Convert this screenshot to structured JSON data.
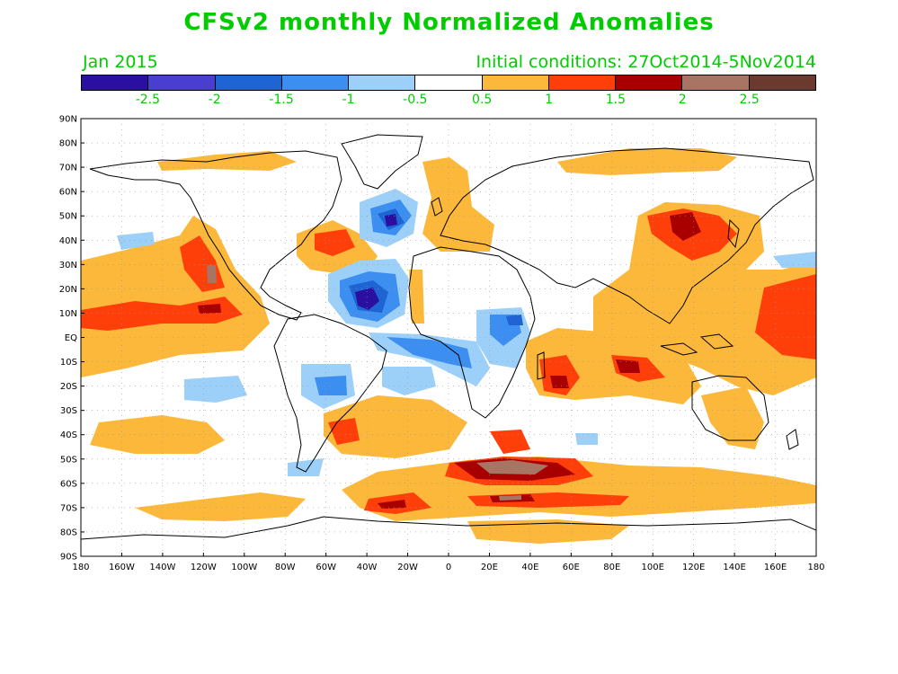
{
  "title": "CFSv2 monthly Normalized Anomalies",
  "period": "Jan 2015",
  "initial_conditions": "Initial conditions: 27Oct2014-5Nov2014",
  "colorbar": {
    "colors": [
      "#2a0fa0",
      "#4a3ed0",
      "#1e64d2",
      "#3c8ff0",
      "#9cd0f8",
      "#ffffff",
      "#fcb83a",
      "#ff3f0a",
      "#a80000",
      "#a87464",
      "#6a3a2e"
    ],
    "labels": [
      "-2.5",
      "-2",
      "-1.5",
      "-1",
      "-0.5",
      "0.5",
      "1",
      "1.5",
      "2",
      "2.5"
    ]
  },
  "axes": {
    "lat_labels": [
      "90N",
      "80N",
      "70N",
      "60N",
      "50N",
      "40N",
      "30N",
      "20N",
      "10N",
      "EQ",
      "10S",
      "20S",
      "30S",
      "40S",
      "50S",
      "60S",
      "70S",
      "80S",
      "90S"
    ],
    "lon_labels": [
      "180",
      "160W",
      "140W",
      "120W",
      "100W",
      "80W",
      "60W",
      "40W",
      "20W",
      "0",
      "20E",
      "40E",
      "60E",
      "80E",
      "100E",
      "120E",
      "140E",
      "160E",
      "180"
    ]
  }
}
